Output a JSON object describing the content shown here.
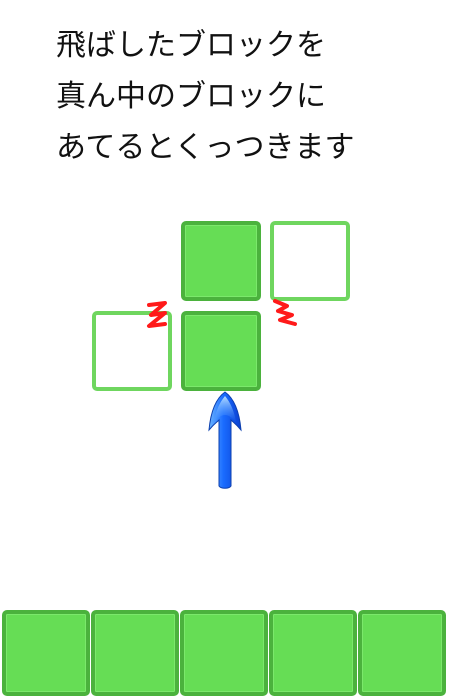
{
  "instructions": {
    "lines": [
      "飛ばしたブロックを",
      "真ん中のブロックに",
      "あてるとくっつきます"
    ]
  },
  "colors": {
    "block_fill": "#66dd55",
    "block_border": "#4bb23d",
    "ghost_border": "#6fd65f",
    "impact_mark": "#ff1a1a",
    "arrow_blue": "#1a6cff"
  },
  "icons": {
    "launch_arrow": "up-arrow-icon",
    "impact": "zigzag-impact-icon"
  },
  "demo": {
    "center_column_solid_blocks": 2,
    "ghost_blocks": 2
  },
  "bottom_row": {
    "block_count": 5
  }
}
